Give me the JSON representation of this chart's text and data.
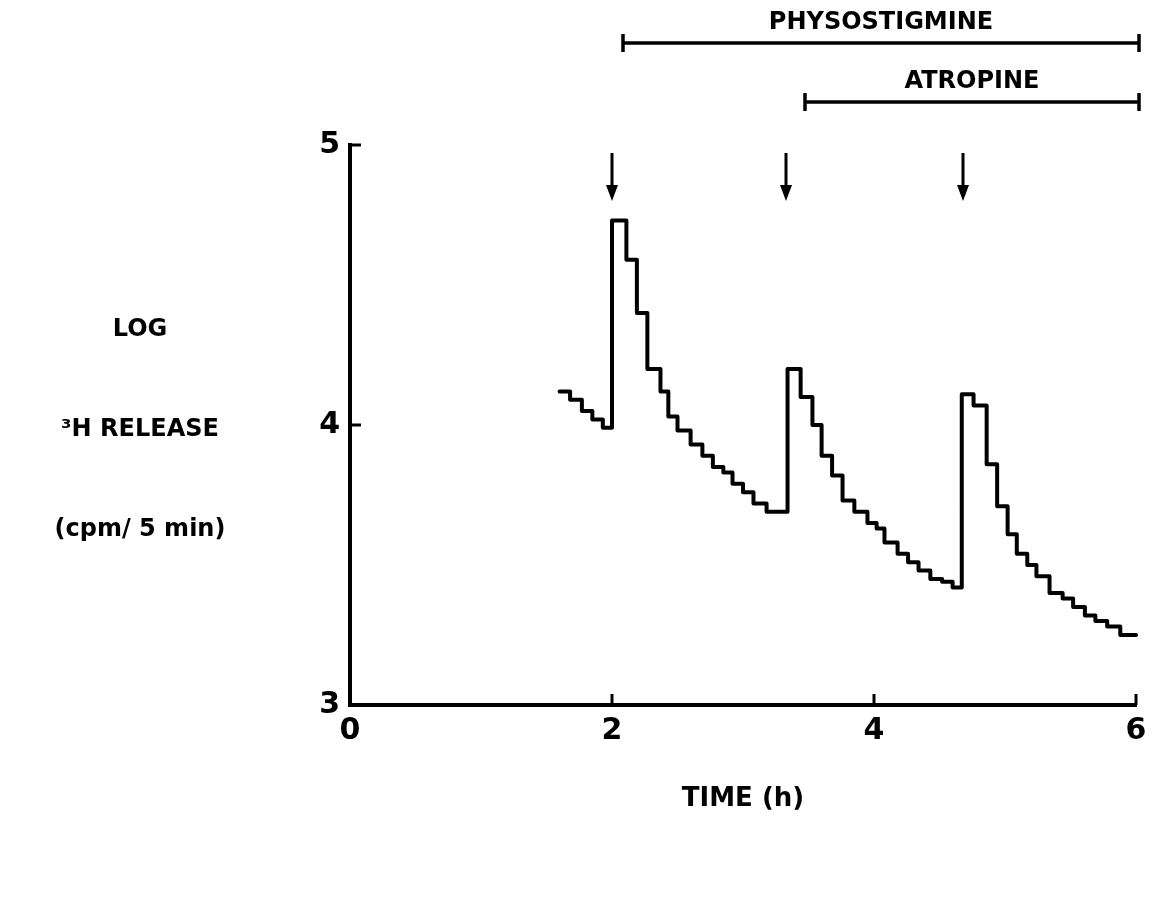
{
  "chart_data": {
    "type": "step",
    "xlabel": "TIME (h)",
    "ylabel": "LOG\n³H RELEASE\n(cpm/ 5 min)",
    "x": [
      1.6,
      1.68,
      1.77,
      1.85,
      1.93,
      2.0,
      2.11,
      2.19,
      2.27,
      2.37,
      2.43,
      2.5,
      2.6,
      2.69,
      2.77,
      2.85,
      2.92,
      3.0,
      3.08,
      3.18,
      3.34,
      3.44,
      3.53,
      3.6,
      3.68,
      3.76,
      3.85,
      3.95,
      4.02,
      4.08,
      4.18,
      4.26,
      4.34,
      4.43,
      4.52,
      4.6,
      4.67,
      4.76,
      4.86,
      4.94,
      5.02,
      5.09,
      5.17,
      5.24,
      5.34,
      5.44,
      5.52,
      5.61,
      5.69,
      5.78,
      5.88,
      6.0
    ],
    "values": [
      4.12,
      4.09,
      4.05,
      4.02,
      3.99,
      4.73,
      4.59,
      4.4,
      4.2,
      4.12,
      4.03,
      3.98,
      3.93,
      3.89,
      3.85,
      3.83,
      3.79,
      3.76,
      3.72,
      3.69,
      4.2,
      4.1,
      4.0,
      3.89,
      3.82,
      3.73,
      3.69,
      3.65,
      3.63,
      3.58,
      3.54,
      3.51,
      3.48,
      3.45,
      3.44,
      3.42,
      4.11,
      4.07,
      3.86,
      3.71,
      3.61,
      3.54,
      3.5,
      3.46,
      3.4,
      3.38,
      3.35,
      3.32,
      3.3,
      3.28,
      3.25,
      3.25
    ],
    "color": "#000000",
    "marker": "none",
    "xlim": [
      0,
      6
    ],
    "ylim": [
      3,
      5
    ],
    "xticks": [
      0,
      2,
      4,
      6
    ],
    "yticks": [
      3,
      4,
      5
    ],
    "annotations": [
      "PHYSOSTIGMINE",
      "ATROPINE"
    ]
  }
}
